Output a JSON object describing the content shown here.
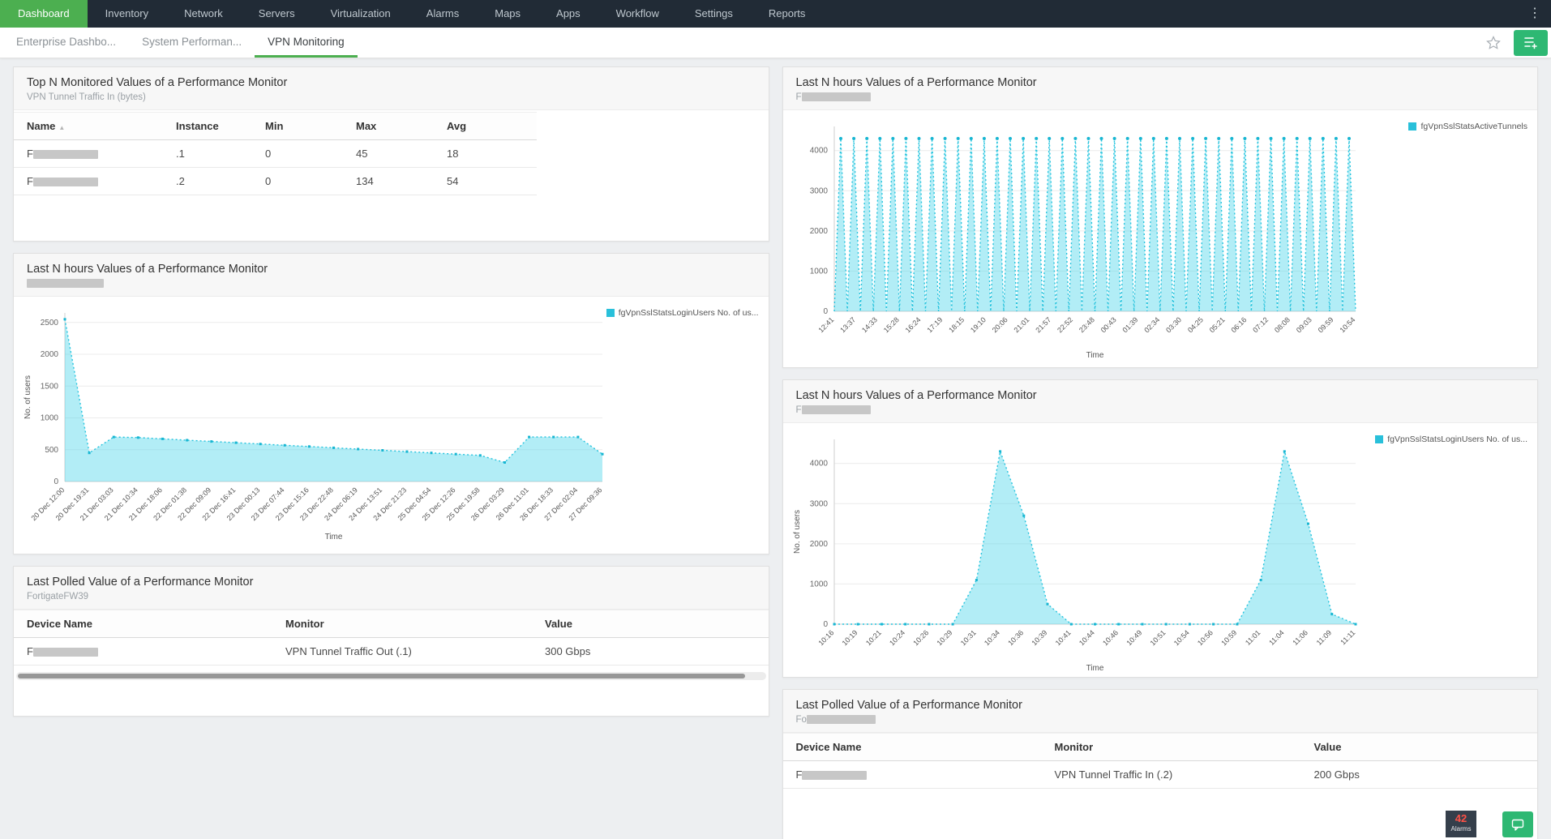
{
  "nav": {
    "items": [
      {
        "label": "Dashboard",
        "active": true
      },
      {
        "label": "Inventory",
        "active": false
      },
      {
        "label": "Network",
        "active": false
      },
      {
        "label": "Servers",
        "active": false
      },
      {
        "label": "Virtualization",
        "active": false
      },
      {
        "label": "Alarms",
        "active": false
      },
      {
        "label": "Maps",
        "active": false
      },
      {
        "label": "Apps",
        "active": false
      },
      {
        "label": "Workflow",
        "active": false
      },
      {
        "label": "Settings",
        "active": false
      },
      {
        "label": "Reports",
        "active": false
      }
    ]
  },
  "tabs": {
    "items": [
      {
        "label": "Enterprise Dashbo...",
        "active": false
      },
      {
        "label": "System Performan...",
        "active": false
      },
      {
        "label": "VPN Monitoring",
        "active": true
      }
    ]
  },
  "widgets": {
    "top_n": {
      "title": "Top N Monitored Values of a Performance Monitor",
      "subtitle": "VPN Tunnel Traffic In (bytes)",
      "columns": [
        "Name",
        "Instance",
        "Min",
        "Max",
        "Avg"
      ],
      "rows": [
        {
          "name_prefix": "F",
          "name_redacted": true,
          "instance": ".1",
          "min": "0",
          "max": "45",
          "avg": "18"
        },
        {
          "name_prefix": "F",
          "name_redacted": true,
          "instance": ".2",
          "min": "0",
          "max": "134",
          "avg": "54"
        }
      ]
    },
    "last_n_left": {
      "title": "Last N hours Values of a Performance Monitor",
      "subtitle_prefix": "",
      "subtitle_redacted": true
    },
    "last_polled_left": {
      "title": "Last Polled Value of a Performance Monitor",
      "subtitle": "FortigateFW39",
      "columns": [
        "Device Name",
        "Monitor",
        "Value"
      ],
      "rows": [
        {
          "device_prefix": "F",
          "device_redacted": true,
          "monitor": "VPN Tunnel Traffic Out (.1)",
          "value": "300 Gbps"
        }
      ]
    },
    "last_n_right_top": {
      "title": "Last N hours Values of a Performance Monitor",
      "subtitle_prefix": "F",
      "subtitle_redacted": true
    },
    "last_n_right_mid": {
      "title": "Last N hours Values of a Performance Monitor",
      "subtitle_prefix": "F",
      "subtitle_redacted": true
    },
    "last_polled_right": {
      "title": "Last Polled Value of a Performance Monitor",
      "subtitle_prefix": "Fo",
      "subtitle_redacted": true,
      "columns": [
        "Device Name",
        "Monitor",
        "Value"
      ],
      "rows": [
        {
          "device_prefix": "F",
          "device_redacted": true,
          "monitor": "VPN Tunnel Traffic In (.2)",
          "value": "200 Gbps"
        }
      ]
    }
  },
  "chart_data": [
    {
      "type": "area",
      "widget": "last_n_left",
      "legend": "fgVpnSslStatsLoginUsers No. of us...",
      "ylabel": "No. of users",
      "xlabel": "Time",
      "yticks": [
        0,
        500,
        1000,
        1500,
        2000,
        2500
      ],
      "ylim": [
        0,
        2650
      ],
      "grid": true,
      "legend_position": "right",
      "categories": [
        "20 Dec 12:00",
        "20 Dec 19:31",
        "21 Dec 03:03",
        "21 Dec 10:34",
        "21 Dec 18:06",
        "22 Dec 01:38",
        "22 Dec 09:09",
        "22 Dec 16:41",
        "23 Dec 00:13",
        "23 Dec 07:44",
        "23 Dec 15:16",
        "23 Dec 22:48",
        "24 Dec 06:19",
        "24 Dec 13:51",
        "24 Dec 21:23",
        "25 Dec 04:54",
        "25 Dec 12:26",
        "25 Dec 19:58",
        "26 Dec 03:29",
        "26 Dec 11:01",
        "26 Dec 18:33",
        "27 Dec 02:04",
        "27 Dec 09:36"
      ],
      "values": [
        2550,
        450,
        700,
        690,
        670,
        650,
        630,
        610,
        590,
        570,
        550,
        530,
        510,
        490,
        470,
        450,
        430,
        410,
        300,
        700,
        700,
        700,
        430
      ]
    },
    {
      "type": "area",
      "pattern": "spikes",
      "widget": "last_n_right_top",
      "legend": "fgVpnSslStatsActiveTunnels",
      "ylabel": "",
      "xlabel": "Time",
      "yticks": [
        0,
        1000,
        2000,
        3000,
        4000
      ],
      "ylim": [
        0,
        4600
      ],
      "grid": true,
      "legend_position": "right",
      "spike_count": 40,
      "spike_peak": 4300,
      "spike_baseline": 0,
      "categories": [
        "12:41",
        "13:37",
        "14:33",
        "15:28",
        "16:24",
        "17:19",
        "18:15",
        "19:10",
        "20:06",
        "21:01",
        "21:57",
        "22:52",
        "23:48",
        "00:43",
        "01:39",
        "02:34",
        "03:30",
        "04:25",
        "05:21",
        "06:16",
        "07:12",
        "08:08",
        "09:03",
        "09:59",
        "10:54"
      ]
    },
    {
      "type": "area",
      "widget": "last_n_right_mid",
      "legend": "fgVpnSslStatsLoginUsers No. of us...",
      "ylabel": "No. of users",
      "xlabel": "Time",
      "yticks": [
        0,
        1000,
        2000,
        3000,
        4000
      ],
      "ylim": [
        0,
        4600
      ],
      "grid": true,
      "legend_position": "right",
      "categories": [
        "10:16",
        "10:19",
        "10:21",
        "10:24",
        "10:26",
        "10:29",
        "10:31",
        "10:34",
        "10:36",
        "10:39",
        "10:41",
        "10:44",
        "10:46",
        "10:49",
        "10:51",
        "10:54",
        "10:56",
        "10:59",
        "11:01",
        "11:04",
        "11:06",
        "11:09",
        "11:11"
      ],
      "values": [
        0,
        0,
        0,
        0,
        0,
        0,
        1100,
        4300,
        2700,
        500,
        0,
        0,
        0,
        0,
        0,
        0,
        0,
        0,
        1100,
        4300,
        2500,
        250,
        0
      ]
    }
  ],
  "status": {
    "alarm_count": "42",
    "alarm_label": "Alarms"
  },
  "colors": {
    "accent_green": "#4caf50",
    "chart_cyan": "#29c0da",
    "nav_bg": "#212b36",
    "alarm_red": "#ff5146",
    "button_green": "#2eb873"
  }
}
